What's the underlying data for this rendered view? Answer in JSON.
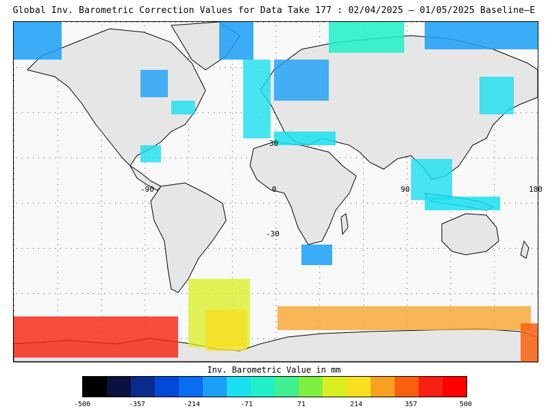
{
  "title": "Global Inv. Barometric Correction Values for Data Take 177 : 02/04/2025 – 01/05/2025 Baseline–E",
  "map": {
    "lat_labels": [
      "30",
      "-30"
    ],
    "lon_labels": [
      "-90",
      "0",
      "90",
      "180"
    ],
    "land_color": "#e6e6e6",
    "ocean_color": "#f8f8f8"
  },
  "legend": {
    "title": "Inv. Barometric Value in mm",
    "ticks": [
      "-500",
      "-357",
      "-214",
      "-71",
      "71",
      "214",
      "357",
      "500"
    ],
    "colors": [
      "#000000",
      "#0a1040",
      "#0a2a8c",
      "#0048d8",
      "#0a6cf0",
      "#1aa0f8",
      "#1ae0f0",
      "#20f0c8",
      "#40f090",
      "#80f040",
      "#d8f020",
      "#f8e020",
      "#f8a020",
      "#f86010",
      "#f82010",
      "#ff0000"
    ]
  }
}
